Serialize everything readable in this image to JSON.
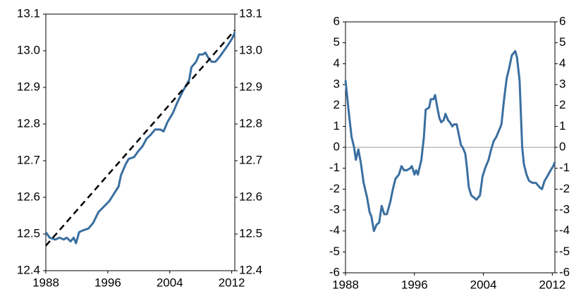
{
  "chart_data": [
    {
      "type": "line",
      "xlim": [
        1988,
        2012.4
      ],
      "xticks": [
        1988,
        1996,
        2004,
        2012
      ],
      "ylim": [
        12.4,
        13.1
      ],
      "yticks": [
        {
          "value": 12.4,
          "label": "12.4"
        },
        {
          "value": 12.5,
          "label": "12.5"
        },
        {
          "value": 12.6,
          "label": "12.6"
        },
        {
          "value": 12.7,
          "label": "12.7"
        },
        {
          "value": 12.8,
          "label": "12.8"
        },
        {
          "value": 12.9,
          "label": "12.9"
        },
        {
          "value": 13.0,
          "label": "13.0"
        },
        {
          "value": 13.1,
          "label": "13.1"
        }
      ],
      "right_tick_labels": true,
      "series": [
        {
          "color": "#3a6fa0",
          "x": [
            1988.0,
            1988.5,
            1989.2,
            1989.8,
            1990.3,
            1990.7,
            1991.2,
            1991.6,
            1991.9,
            1992.3,
            1992.8,
            1993.5,
            1994.1,
            1994.8,
            1995.5,
            1996.2,
            1996.8,
            1997.4,
            1997.7,
            1998.3,
            1998.7,
            1999.4,
            1999.9,
            2000.5,
            2001.0,
            2001.5,
            2002.1,
            2002.8,
            2003.2,
            2003.7,
            2004.4,
            2005.0,
            2005.7,
            2006.5,
            2006.8,
            2007.4,
            2007.8,
            2008.3,
            2008.6,
            2009.0,
            2009.4,
            2009.9,
            2010.5,
            2011.0,
            2011.5,
            2012.1,
            2012.4
          ],
          "values": [
            12.505,
            12.49,
            12.485,
            12.49,
            12.485,
            12.49,
            12.48,
            12.49,
            12.475,
            12.505,
            12.51,
            12.515,
            12.53,
            12.56,
            12.575,
            12.59,
            12.61,
            12.63,
            12.66,
            12.69,
            12.705,
            12.71,
            12.725,
            12.74,
            12.76,
            12.77,
            12.785,
            12.785,
            12.78,
            12.805,
            12.83,
            12.86,
            12.89,
            12.92,
            12.955,
            12.97,
            12.99,
            12.99,
            12.995,
            12.98,
            12.97,
            12.97,
            12.985,
            13.0,
            13.015,
            13.035,
            13.05
          ]
        },
        {
          "color": "#000000",
          "dashed": true,
          "x": [
            1988.0,
            2012.4
          ],
          "values": [
            12.468,
            13.056
          ]
        }
      ]
    },
    {
      "type": "line",
      "xlim": [
        1988,
        2012.3
      ],
      "xticks": [
        1988,
        1996,
        2004,
        2012
      ],
      "ylim": [
        -6,
        6
      ],
      "yticks": [
        -6,
        -5,
        -4,
        -3,
        -2,
        -1,
        0,
        1,
        2,
        3,
        4,
        5,
        6
      ],
      "right_tick_labels": true,
      "zero_line": true,
      "series": [
        {
          "color": "#3a6fa0",
          "x": [
            1988.0,
            1988.4,
            1988.7,
            1989.0,
            1989.2,
            1989.5,
            1989.8,
            1990.1,
            1990.5,
            1990.8,
            1991.0,
            1991.3,
            1991.6,
            1991.9,
            1992.2,
            1992.5,
            1992.8,
            1993.2,
            1993.5,
            1993.8,
            1994.2,
            1994.5,
            1994.8,
            1995.1,
            1995.5,
            1995.7,
            1996.0,
            1996.2,
            1996.4,
            1996.8,
            1997.1,
            1997.3,
            1997.7,
            1997.9,
            1998.2,
            1998.4,
            1998.7,
            1998.9,
            1999.1,
            1999.4,
            1999.6,
            1999.9,
            2000.1,
            2000.4,
            2000.6,
            2000.9,
            2001.1,
            2001.4,
            2001.6,
            2001.9,
            2002.1,
            2002.3,
            2002.6,
            2002.9,
            2003.2,
            2003.6,
            2003.9,
            2004.2,
            2004.6,
            2004.9,
            2005.2,
            2005.5,
            2005.9,
            2006.1,
            2006.4,
            2006.7,
            2007.0,
            2007.3,
            2007.7,
            2007.9,
            2008.2,
            2008.5,
            2008.7,
            2009.0,
            2009.3,
            2009.7,
            2010.1,
            2010.5,
            2010.8,
            2011.1,
            2011.4,
            2011.8,
            2012.1,
            2012.3
          ],
          "values": [
            3.2,
            1.6,
            0.5,
            0.0,
            -0.6,
            -0.1,
            -0.8,
            -1.7,
            -2.4,
            -3.1,
            -3.3,
            -4.0,
            -3.7,
            -3.6,
            -2.8,
            -3.2,
            -3.2,
            -2.6,
            -2.0,
            -1.5,
            -1.3,
            -0.9,
            -1.1,
            -1.1,
            -1.0,
            -0.9,
            -1.3,
            -1.1,
            -1.3,
            -0.6,
            0.5,
            1.8,
            1.9,
            2.3,
            2.3,
            2.5,
            1.8,
            1.4,
            1.2,
            1.3,
            1.6,
            1.3,
            1.2,
            1.0,
            1.1,
            1.1,
            0.7,
            0.1,
            0.0,
            -0.3,
            -1.0,
            -1.9,
            -2.3,
            -2.4,
            -2.5,
            -2.3,
            -1.4,
            -1.0,
            -0.6,
            -0.1,
            0.3,
            0.5,
            0.9,
            1.1,
            2.3,
            3.3,
            3.8,
            4.4,
            4.6,
            4.3,
            3.2,
            0.0,
            -0.8,
            -1.3,
            -1.6,
            -1.7,
            -1.7,
            -1.9,
            -2.0,
            -1.6,
            -1.4,
            -1.1,
            -0.9,
            -0.7
          ]
        }
      ]
    }
  ]
}
